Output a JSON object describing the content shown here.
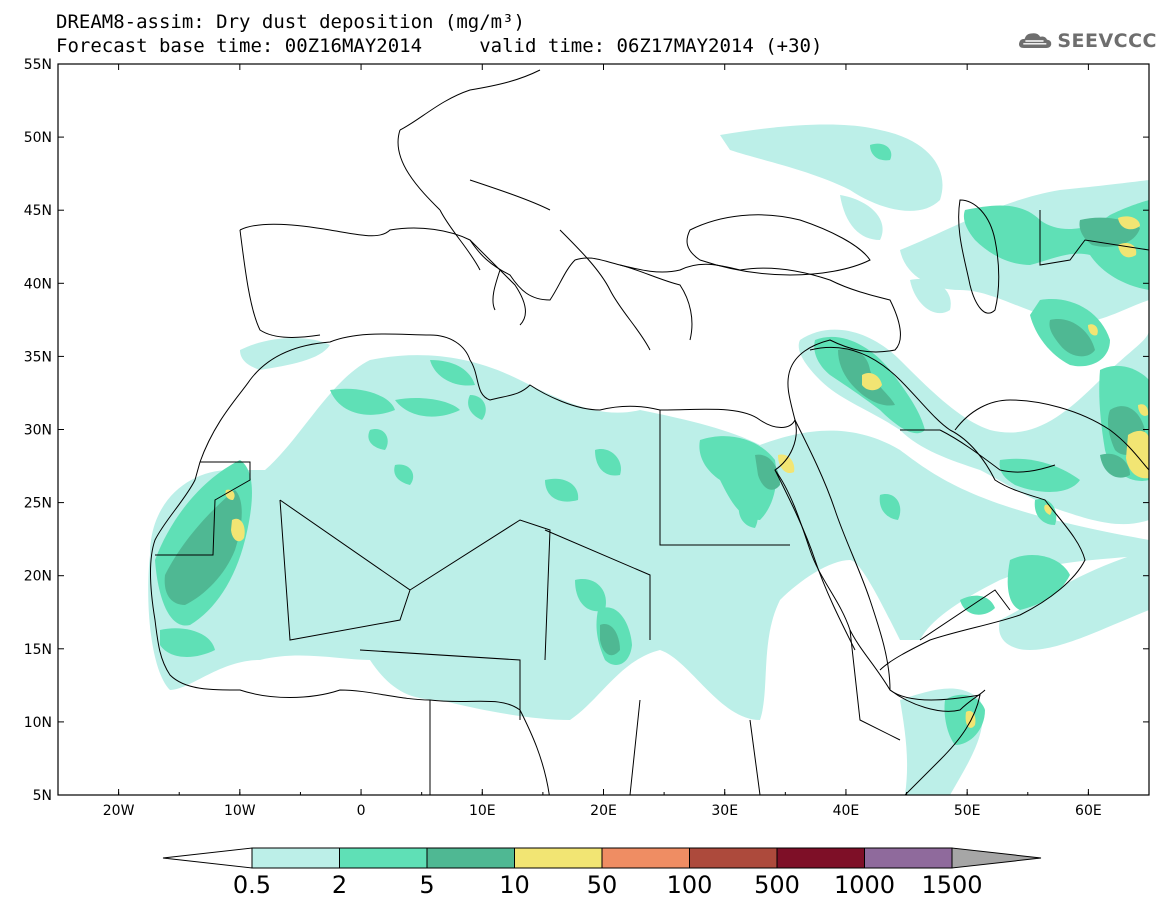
{
  "header": {
    "line1": "DREAM8-assim: Dry dust deposition (mg/m³)",
    "line2": "Forecast base time: 00Z16MAY2014     valid time: 06Z17MAY2014 (+30)"
  },
  "logo": {
    "text": "SEEVCCC",
    "icon": "cloud-logo-icon"
  },
  "map": {
    "projection": "lat-lon",
    "lon_range": [
      -25,
      65
    ],
    "lat_range": [
      5,
      55
    ],
    "lat_labels": [
      "55N",
      "50N",
      "45N",
      "40N",
      "35N",
      "30N",
      "25N",
      "20N",
      "15N",
      "10N",
      "5N"
    ],
    "lon_labels": [
      "20W",
      "10W",
      "0",
      "10E",
      "20E",
      "30E",
      "40E",
      "50E",
      "60E"
    ]
  },
  "colorbar": {
    "labels": [
      "0.5",
      "2",
      "5",
      "10",
      "50",
      "100",
      "500",
      "1000",
      "1500"
    ],
    "colors": [
      "#bcefe8",
      "#5fe0b6",
      "#4fb893",
      "#f2e573",
      "#ef8d63",
      "#ad4a3c",
      "#7e0f27",
      "#8f6a9c",
      "#a6a6a6"
    ]
  },
  "fields": {
    "c1": "#bcefe8",
    "c2": "#5fe0b6",
    "c3": "#4fb893",
    "c4": "#f2e573",
    "coast": "#000000"
  }
}
